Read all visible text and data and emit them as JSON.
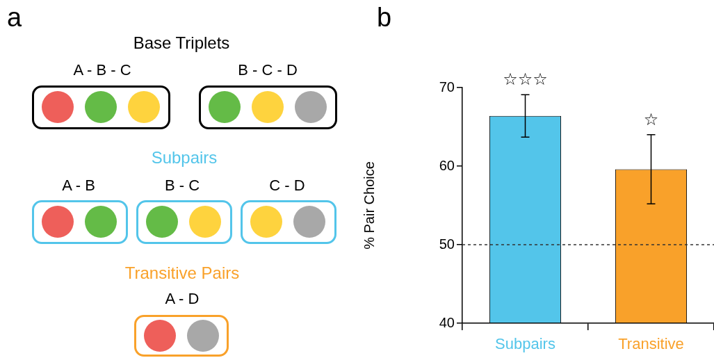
{
  "chart_data": [
    {
      "type": "other",
      "title": "a",
      "annotations": [
        "Base Triplets",
        "A - B - C",
        "B - C - D",
        "Subpairs",
        "A - B",
        "B - C",
        "C - D",
        "Transitive Pairs",
        "A - D"
      ]
    },
    {
      "type": "bar",
      "title": "b",
      "ylabel": "% Pair Choice",
      "categories": [
        "Subpairs",
        "Transitive"
      ],
      "values": [
        66.4,
        59.6
      ],
      "errors": [
        2.7,
        4.4
      ],
      "colors": [
        "#53c5ea",
        "#f9a12a"
      ],
      "ylim": [
        40,
        70
      ],
      "yticks": [
        40,
        50,
        60,
        70
      ],
      "ref_lines": [
        {
          "axis": "y",
          "value": 50,
          "color": "#333333",
          "line_style": "dashed"
        }
      ],
      "annotations": [
        "☆☆☆",
        "☆"
      ]
    }
  ]
}
